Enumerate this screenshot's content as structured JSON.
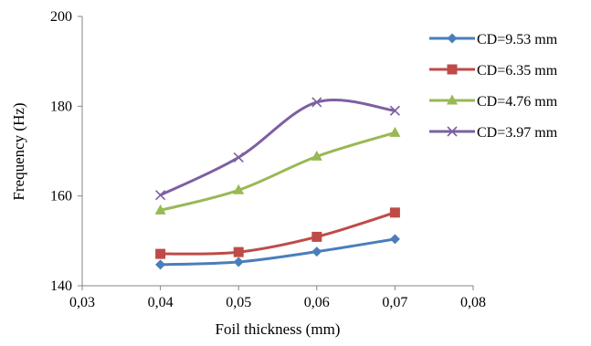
{
  "chart_data": {
    "type": "line",
    "title": "",
    "xlabel": "Foil thickness (mm)",
    "ylabel": "Frequency (Hz)",
    "xlim": [
      0.03,
      0.08
    ],
    "ylim": [
      140,
      200
    ],
    "x_ticks": [
      0.03,
      0.04,
      0.05,
      0.06,
      0.07,
      0.08
    ],
    "x_tick_labels": [
      "0,03",
      "0,04",
      "0,05",
      "0,06",
      "0,07",
      "0,08"
    ],
    "y_ticks": [
      140,
      160,
      180,
      200
    ],
    "y_tick_labels": [
      "140",
      "160",
      "180",
      "200"
    ],
    "grid": false,
    "smooth": true,
    "legend_position": "top-right",
    "x": [
      0.04,
      0.05,
      0.06,
      0.07
    ],
    "series": [
      {
        "name": "CD=9.53 mm",
        "values": [
          144.7,
          145.3,
          147.6,
          150.4
        ],
        "color": "#4A7EBB",
        "marker": "diamond"
      },
      {
        "name": "CD=6.35 mm",
        "values": [
          147.1,
          147.5,
          150.9,
          156.3
        ],
        "color": "#BE4B48",
        "marker": "square"
      },
      {
        "name": "CD=4.76 mm",
        "values": [
          156.8,
          161.3,
          168.8,
          174.1
        ],
        "color": "#98B954",
        "marker": "triangle"
      },
      {
        "name": "CD=3.97 mm",
        "values": [
          160.2,
          168.6,
          180.9,
          179.0
        ],
        "color": "#7D60A0",
        "marker": "x"
      }
    ]
  }
}
